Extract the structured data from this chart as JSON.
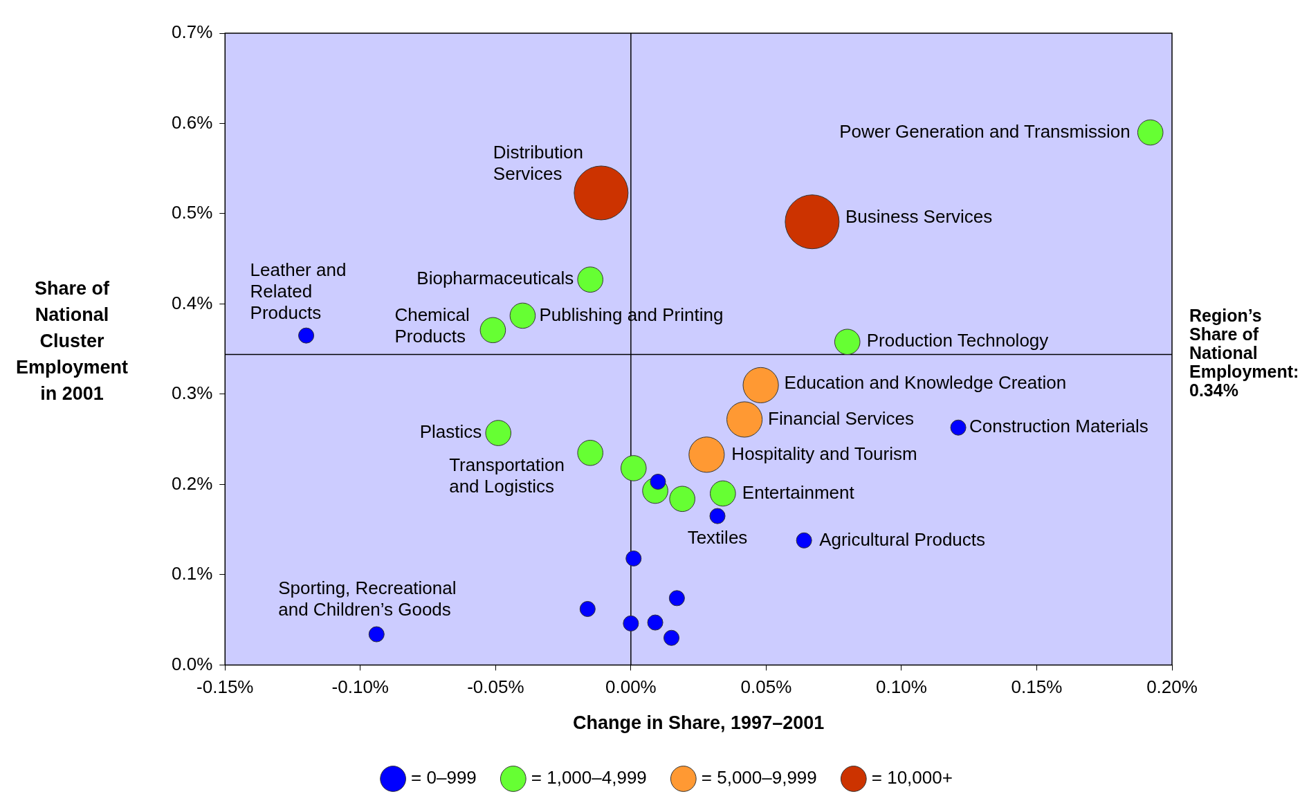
{
  "chart_data": {
    "type": "bubble",
    "xlabel": "Change in Share, 1997–2001",
    "ylabel": "Share of National Cluster Employment in 2001",
    "xlim": [
      -0.15,
      0.2
    ],
    "xticks": [
      {
        "value": -0.15,
        "label": "-0.15%"
      },
      {
        "value": -0.1,
        "label": "-0.10%"
      },
      {
        "value": -0.05,
        "label": "-0.05%"
      },
      {
        "value": 0,
        "label": "0.00%"
      },
      {
        "value": 0.05,
        "label": "0.05%"
      },
      {
        "value": 0.1,
        "label": "0.10%"
      },
      {
        "value": 0.15,
        "label": "0.15%"
      },
      {
        "value": 0.2,
        "label": "0.20%"
      }
    ],
    "ylim": [
      0,
      0.7
    ],
    "yticks": [
      {
        "value": 0,
        "label": "0.0%"
      },
      {
        "value": 0.1,
        "label": "0.1%"
      },
      {
        "value": 0.2,
        "label": "0.2%"
      },
      {
        "value": 0.3,
        "label": "0.3%"
      },
      {
        "value": 0.4,
        "label": "0.4%"
      },
      {
        "value": 0.5,
        "label": "0.5%"
      },
      {
        "value": 0.6,
        "label": "0.6%"
      },
      {
        "value": 0.7,
        "label": "0.7%"
      }
    ],
    "grid": false,
    "legend": "bottom",
    "series": [
      {
        "name": "= 0–999",
        "color": "#0000ff",
        "x": [
          -0.12,
          0.121,
          0.01,
          0.032,
          0.064,
          0.001,
          0.017,
          -0.016,
          0,
          0.009,
          0.015,
          -0.094
        ],
        "values": [
          0.365,
          0.263,
          0.203,
          0.165,
          0.138,
          0.118,
          0.074,
          0.062,
          0.046,
          0.047,
          0.03,
          0.034
        ],
        "sizes": [
          0.08,
          0.08,
          0.08,
          0.08,
          0.08,
          0.08,
          0.08,
          0.08,
          0.08,
          0.08,
          0.08,
          0.08
        ]
      },
      {
        "name": "= 1,000–4,999",
        "color": "#66ff33",
        "x": [
          0.192,
          -0.015,
          -0.04,
          -0.051,
          0.08,
          -0.049,
          -0.015,
          0.001,
          0.009,
          0.019,
          0.034
        ],
        "values": [
          0.59,
          0.427,
          0.387,
          0.371,
          0.358,
          0.257,
          0.235,
          0.218,
          0.193,
          0.184,
          0.19
        ],
        "sizes": [
          0.22,
          0.22,
          0.22,
          0.22,
          0.22,
          0.22,
          0.22,
          0.22,
          0.22,
          0.22,
          0.22
        ]
      },
      {
        "name": "= 5,000–9,999",
        "color": "#ff9933",
        "x": [
          0.048,
          0.042,
          0.028
        ],
        "values": [
          0.31,
          0.272,
          0.233
        ],
        "sizes": [
          0.43,
          0.43,
          0.43
        ]
      },
      {
        "name": "= 10,000+",
        "color": "#cc3300",
        "x": [
          -0.011,
          0.067
        ],
        "values": [
          0.523,
          0.491
        ],
        "sizes": [
          1,
          1
        ]
      }
    ],
    "ref_lines": [
      {
        "axis": "x",
        "value": 0
      },
      {
        "axis": "y",
        "value": 0.344,
        "label": "Region’s Share of National Employment: 0.34%"
      }
    ],
    "annotations": [
      {
        "text": "Power Generation and Transmission",
        "x": 0.192,
        "y": 0.59
      },
      {
        "text": "Distribution Services",
        "x": -0.011,
        "y": 0.523
      },
      {
        "text": "Business Services",
        "x": 0.067,
        "y": 0.491
      },
      {
        "text": "Biopharmaceuticals",
        "x": -0.015,
        "y": 0.427
      },
      {
        "text": "Leather and Related Products",
        "x": -0.12,
        "y": 0.365
      },
      {
        "text": "Publishing and Printing",
        "x": -0.04,
        "y": 0.387
      },
      {
        "text": "Chemical Products",
        "x": -0.051,
        "y": 0.371
      },
      {
        "text": "Production Technology",
        "x": 0.08,
        "y": 0.358
      },
      {
        "text": "Education and Knowledge Creation",
        "x": 0.048,
        "y": 0.31
      },
      {
        "text": "Financial Services",
        "x": 0.042,
        "y": 0.272
      },
      {
        "text": "Construction Materials",
        "x": 0.121,
        "y": 0.263
      },
      {
        "text": "Plastics",
        "x": -0.049,
        "y": 0.257
      },
      {
        "text": "Transportation and Logistics",
        "x": -0.015,
        "y": 0.235
      },
      {
        "text": "Hospitality and Tourism",
        "x": 0.028,
        "y": 0.233
      },
      {
        "text": "Entertainment",
        "x": 0.034,
        "y": 0.19
      },
      {
        "text": "Textiles",
        "x": 0.032,
        "y": 0.165
      },
      {
        "text": "Agricultural Products",
        "x": 0.064,
        "y": 0.138
      },
      {
        "text": "Sporting, Recreational and Children’s Goods",
        "x": -0.094,
        "y": 0.034
      }
    ]
  }
}
